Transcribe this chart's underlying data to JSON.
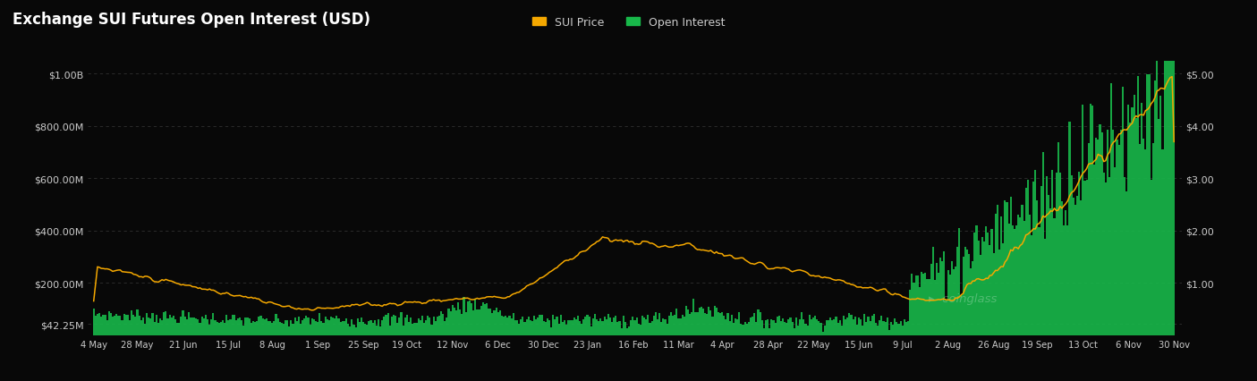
{
  "title": "Exchange SUI Futures Open Interest (USD)",
  "background_color": "#080808",
  "text_color": "#cccccc",
  "bar_color": "#18b84a",
  "line_color": "#f5a800",
  "x_labels": [
    "4 May",
    "28 May",
    "21 Jun",
    "15 Jul",
    "8 Aug",
    "1 Sep",
    "25 Sep",
    "19 Oct",
    "12 Nov",
    "6 Dec",
    "30 Dec",
    "23 Jan",
    "16 Feb",
    "11 Mar",
    "4 Apr",
    "28 Apr",
    "22 May",
    "15 Jun",
    "9 Jul",
    "2 Aug",
    "26 Aug",
    "19 Sep",
    "13 Oct",
    "6 Nov",
    "30 Nov"
  ],
  "y_left_ticks": [
    42250000,
    200000000,
    400000000,
    600000000,
    800000000,
    1000000000
  ],
  "y_left_labels": [
    "$42.25M",
    "$200.00M",
    "$400.00M",
    "$600.00M",
    "$800.00M",
    "$1.00B"
  ],
  "y_right_ticks": [
    1.0,
    2.0,
    3.0,
    4.0,
    5.0
  ],
  "y_right_labels": [
    "$1.00",
    "$2.00",
    "$3.00",
    "$4.00",
    "$5.00"
  ],
  "legend_sui_price": "SUI Price",
  "legend_open_interest": "Open Interest",
  "watermark": "coinglass",
  "n_points": 570,
  "oi_ylim": [
    0,
    1080000000
  ],
  "price_ylim": [
    0,
    5.4
  ]
}
